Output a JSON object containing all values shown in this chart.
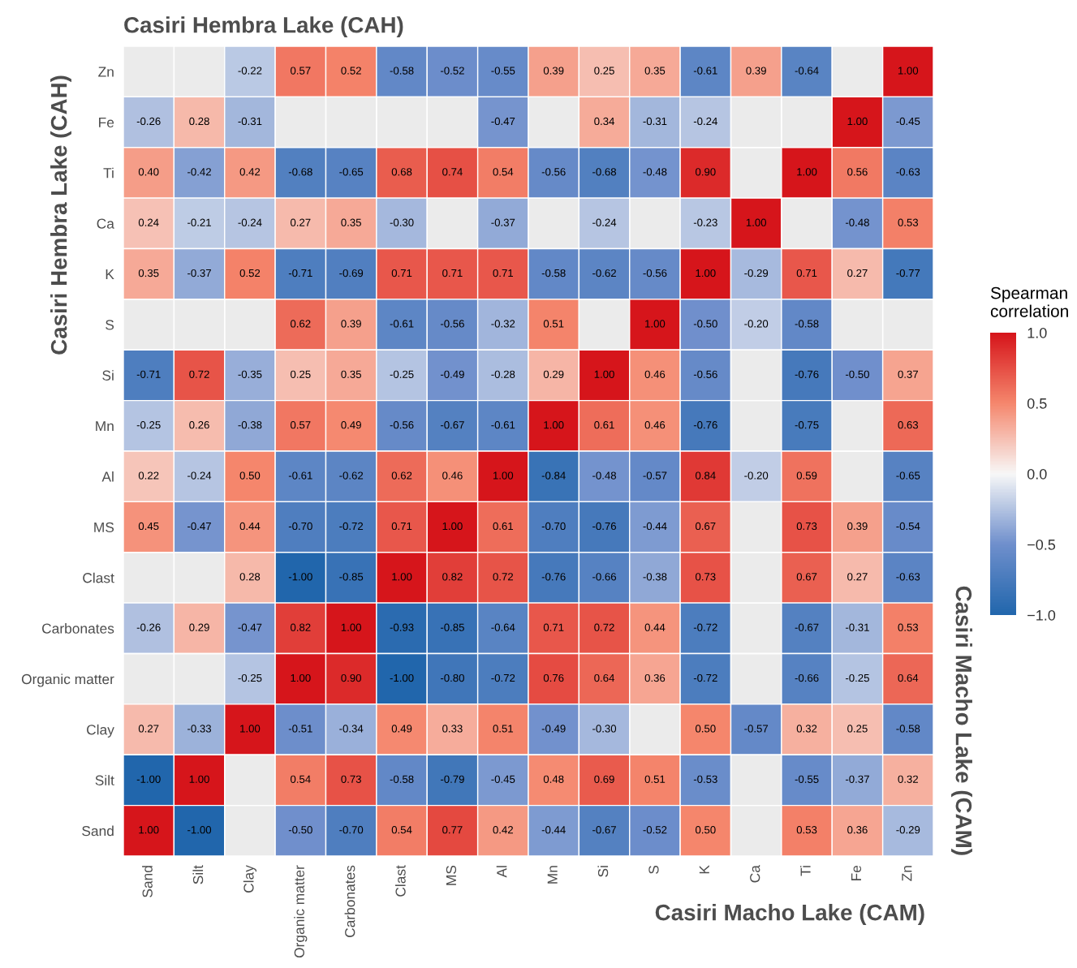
{
  "chart_data": {
    "type": "heatmap",
    "title": "Casiri Hembra Lake (CAH)",
    "xlabel": "Casiri Macho Lake (CAM)",
    "ylabel": "Casiri Hembra Lake (CAH)",
    "y2label": "Casiri Macho Lake (CAM)",
    "clabel": "Spearman\ncorrelation",
    "categories": [
      "Sand",
      "Silt",
      "Clay",
      "Organic matter",
      "Carbonates",
      "Clast",
      "MS",
      "Al",
      "Mn",
      "Si",
      "S",
      "K",
      "Ca",
      "Ti",
      "Fe",
      "Zn"
    ],
    "y_categories": [
      "Zn",
      "Fe",
      "Ti",
      "Ca",
      "K",
      "S",
      "Si",
      "Mn",
      "Al",
      "MS",
      "Clast",
      "Carbonates",
      "Organic matter",
      "Clay",
      "Silt",
      "Sand"
    ],
    "colors": [
      "#2166ac",
      "#6f8fcc",
      "#f7f7f7",
      "#f5876d",
      "#d6151b"
    ],
    "clim": [
      -1,
      1
    ],
    "cticks": [
      {
        "value": -1,
        "label": "−1.0"
      },
      {
        "value": -0.5,
        "label": "−0.5"
      },
      {
        "value": 0,
        "label": "0.0"
      },
      {
        "value": 0.5,
        "label": "0.5"
      },
      {
        "value": 1,
        "label": "1.0"
      }
    ],
    "cells": [
      [
        null,
        null,
        -0.22,
        0.57,
        0.52,
        -0.58,
        -0.52,
        -0.55,
        0.39,
        0.25,
        0.35,
        -0.61,
        0.39,
        -0.64,
        null,
        1.0
      ],
      [
        -0.26,
        0.28,
        -0.31,
        null,
        null,
        null,
        null,
        -0.47,
        null,
        0.34,
        -0.31,
        -0.24,
        null,
        null,
        1.0,
        -0.45
      ],
      [
        0.4,
        -0.42,
        0.42,
        -0.68,
        -0.65,
        0.68,
        0.74,
        0.54,
        -0.56,
        -0.68,
        -0.48,
        0.9,
        null,
        1.0,
        0.56,
        -0.63
      ],
      [
        0.24,
        -0.21,
        -0.24,
        0.27,
        0.35,
        -0.3,
        null,
        -0.37,
        null,
        -0.24,
        null,
        -0.23,
        1.0,
        null,
        -0.48,
        0.53
      ],
      [
        0.35,
        -0.37,
        0.52,
        -0.71,
        -0.69,
        0.71,
        0.71,
        0.71,
        -0.58,
        -0.62,
        -0.56,
        1.0,
        -0.29,
        0.71,
        0.27,
        -0.77
      ],
      [
        null,
        null,
        null,
        0.62,
        0.39,
        -0.61,
        -0.56,
        -0.32,
        0.51,
        null,
        1.0,
        -0.5,
        -0.2,
        -0.58,
        null,
        null
      ],
      [
        -0.71,
        0.72,
        -0.35,
        0.25,
        0.35,
        -0.25,
        -0.49,
        -0.28,
        0.29,
        1.0,
        0.46,
        -0.56,
        null,
        -0.76,
        -0.5,
        0.37
      ],
      [
        -0.25,
        0.26,
        -0.38,
        0.57,
        0.49,
        -0.56,
        -0.67,
        -0.61,
        1.0,
        0.61,
        0.46,
        -0.76,
        null,
        -0.75,
        null,
        0.63
      ],
      [
        0.22,
        -0.24,
        0.5,
        -0.61,
        -0.62,
        0.62,
        0.46,
        1.0,
        -0.84,
        -0.48,
        -0.57,
        0.84,
        -0.2,
        0.59,
        null,
        -0.65
      ],
      [
        0.45,
        -0.47,
        0.44,
        -0.7,
        -0.72,
        0.71,
        1.0,
        0.61,
        -0.7,
        -0.76,
        -0.44,
        0.67,
        null,
        0.73,
        0.39,
        -0.54
      ],
      [
        null,
        null,
        0.28,
        -1.0,
        -0.85,
        1.0,
        0.82,
        0.72,
        -0.76,
        -0.66,
        -0.38,
        0.73,
        null,
        0.67,
        0.27,
        -0.63
      ],
      [
        -0.26,
        0.29,
        -0.47,
        0.82,
        1.0,
        -0.93,
        -0.85,
        -0.64,
        0.71,
        0.72,
        0.44,
        -0.72,
        null,
        -0.67,
        -0.31,
        0.53
      ],
      [
        null,
        null,
        -0.25,
        1.0,
        0.9,
        -1.0,
        -0.8,
        -0.72,
        0.76,
        0.64,
        0.36,
        -0.72,
        null,
        -0.66,
        -0.25,
        0.64
      ],
      [
        0.27,
        -0.33,
        1.0,
        -0.51,
        -0.34,
        0.49,
        0.33,
        0.51,
        -0.49,
        -0.3,
        null,
        0.5,
        -0.57,
        0.32,
        0.25,
        -0.58
      ],
      [
        -1.0,
        1.0,
        null,
        0.54,
        0.73,
        -0.58,
        -0.79,
        -0.45,
        0.48,
        0.69,
        0.51,
        -0.53,
        null,
        -0.55,
        -0.37,
        0.32
      ],
      [
        1.0,
        -1.0,
        null,
        -0.5,
        -0.7,
        0.54,
        0.77,
        0.42,
        -0.44,
        -0.67,
        -0.52,
        0.5,
        null,
        0.53,
        0.36,
        -0.29
      ]
    ],
    "cell_labels": [
      [
        null,
        null,
        "-0.22",
        "0.57",
        "0.52",
        "-0.58",
        "-0.52",
        "-0.55",
        "0.39",
        "0.25",
        "0.35",
        "-0.61",
        "0.39",
        "-0.64",
        null,
        "1.00"
      ],
      [
        "-0.26",
        "0.28",
        "-0.31",
        null,
        null,
        null,
        null,
        "-0.47",
        null,
        "0.34",
        "-0.31",
        "-0.24",
        null,
        null,
        "1.00",
        "-0.45"
      ],
      [
        "0.40",
        "-0.42",
        "0.42",
        "-0.68",
        "-0.65",
        "0.68",
        "0.74",
        "0.54",
        "-0.56",
        "-0.68",
        "-0.48",
        "0.90",
        null,
        "1.00",
        "0.56",
        "-0.63"
      ],
      [
        "0.24",
        "-0.21",
        "-0.24",
        "0.27",
        "0.35",
        "-0.30",
        null,
        "-0.37",
        null,
        "-0.24",
        null,
        "-0.23",
        "1.00",
        null,
        "-0.48",
        "0.53"
      ],
      [
        "0.35",
        "-0.37",
        "0.52",
        "-0.71",
        "-0.69",
        "0.71",
        "0.71",
        "0.71",
        "-0.58",
        "-0.62",
        "-0.56",
        "1.00",
        "-0.29",
        "0.71",
        "0.27",
        "-0.77"
      ],
      [
        null,
        null,
        null,
        "0.62",
        "0.39",
        "-0.61",
        "-0.56",
        "-0.32",
        "0.51",
        null,
        "1.00",
        "-0.50",
        "-0.20",
        "-0.58",
        null,
        null
      ],
      [
        "-0.71",
        "0.72",
        "-0.35",
        "0.25",
        "0.35",
        "-0.25",
        "-0.49",
        "-0.28",
        "0.29",
        "1.00",
        "0.46",
        "-0.56",
        null,
        "-0.76",
        "-0.50",
        "0.37"
      ],
      [
        "-0.25",
        "0.26",
        "-0.38",
        "0.57",
        "0.49",
        "-0.56",
        "-0.67",
        "-0.61",
        "1.00",
        "0.61",
        "0.46",
        "-0.76",
        null,
        "-0.75",
        null,
        "0.63"
      ],
      [
        "0.22",
        "-0.24",
        "0.50",
        "-0.61",
        "-0.62",
        "0.62",
        "0.46",
        "1.00",
        "-0.84",
        "-0.48",
        "-0.57",
        "0.84",
        "-0.20",
        "0.59",
        null,
        "-0.65"
      ],
      [
        "0.45",
        "-0.47",
        "0.44",
        "-0.70",
        "-0.72",
        "0.71",
        "1.00",
        "0.61",
        "-0.70",
        "-0.76",
        "-0.44",
        "0.67",
        null,
        "0.73",
        "0.39",
        "-0.54"
      ],
      [
        null,
        null,
        "0.28",
        "-1.00",
        "-0.85",
        "1.00",
        "0.82",
        "0.72",
        "-0.76",
        "-0.66",
        "-0.38",
        "0.73",
        null,
        "0.67",
        "0.27",
        "-0.63"
      ],
      [
        "-0.26",
        "0.29",
        "-0.47",
        "0.82",
        "1.00",
        "-0.93",
        "-0.85",
        "-0.64",
        "0.71",
        "0.72",
        "0.44",
        "-0.72",
        null,
        "-0.67",
        "-0.31",
        "0.53"
      ],
      [
        null,
        null,
        "-0.25",
        "1.00",
        "0.90",
        "-1.00",
        "-0.80",
        "-0.72",
        "0.76",
        "0.64",
        "0.36",
        "-0.72",
        null,
        "-0.66",
        "-0.25",
        "0.64"
      ],
      [
        "0.27",
        "-0.33",
        "1.00",
        "-0.51",
        "-0.34",
        "0.49",
        "0.33",
        "0.51",
        "-0.49",
        "-0.30",
        null,
        "0.50",
        "-0.57",
        "0.32",
        "0.25",
        "-0.58"
      ],
      [
        "-1.00",
        "1.00",
        null,
        "0.54",
        "0.73",
        "-0.58",
        "-0.79",
        "-0.45",
        "0.48",
        "0.69",
        "0.51",
        "-0.53",
        null,
        "-0.55",
        "-0.37",
        "0.32"
      ],
      [
        "1.00",
        "-1.00",
        null,
        "-0.50",
        "-0.70",
        "0.54",
        "0.77",
        "0.42",
        "-0.44",
        "-0.67",
        "-0.52",
        "0.50",
        null,
        "0.53",
        "0.36",
        "-0.29"
      ]
    ]
  }
}
